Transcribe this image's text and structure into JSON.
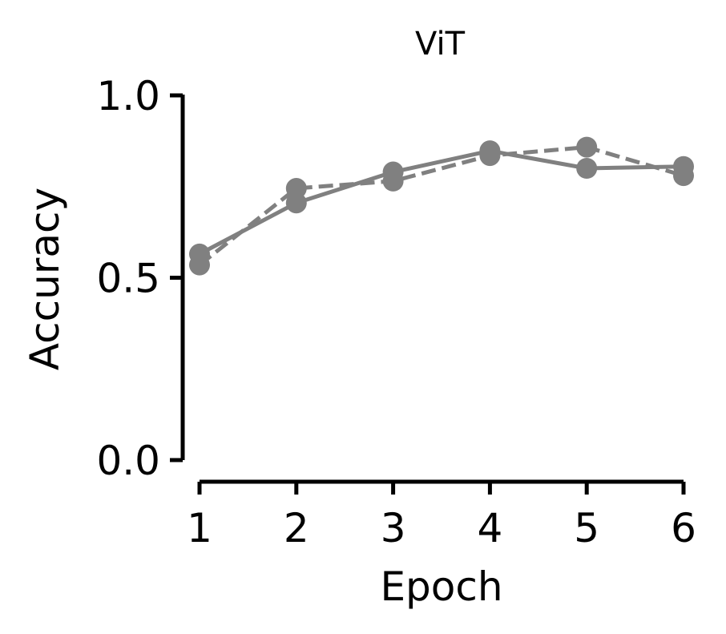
{
  "chart_data": {
    "type": "line",
    "title": "ViT",
    "xlabel": "Epoch",
    "ylabel": "Accuracy",
    "x": [
      1,
      2,
      3,
      4,
      5,
      6
    ],
    "xlim": [
      1,
      6
    ],
    "ylim": [
      0.0,
      1.0
    ],
    "xticks": [
      "1",
      "2",
      "3",
      "4",
      "5",
      "6"
    ],
    "yticks": [
      "0.0",
      "0.5",
      "1.0"
    ],
    "grid": false,
    "color": "#808080",
    "series": [
      {
        "style": "solid",
        "values": [
          0.565,
          0.705,
          0.79,
          0.848,
          0.8,
          0.805
        ]
      },
      {
        "style": "dashed",
        "values": [
          0.535,
          0.745,
          0.765,
          0.835,
          0.858,
          0.78
        ]
      }
    ]
  }
}
